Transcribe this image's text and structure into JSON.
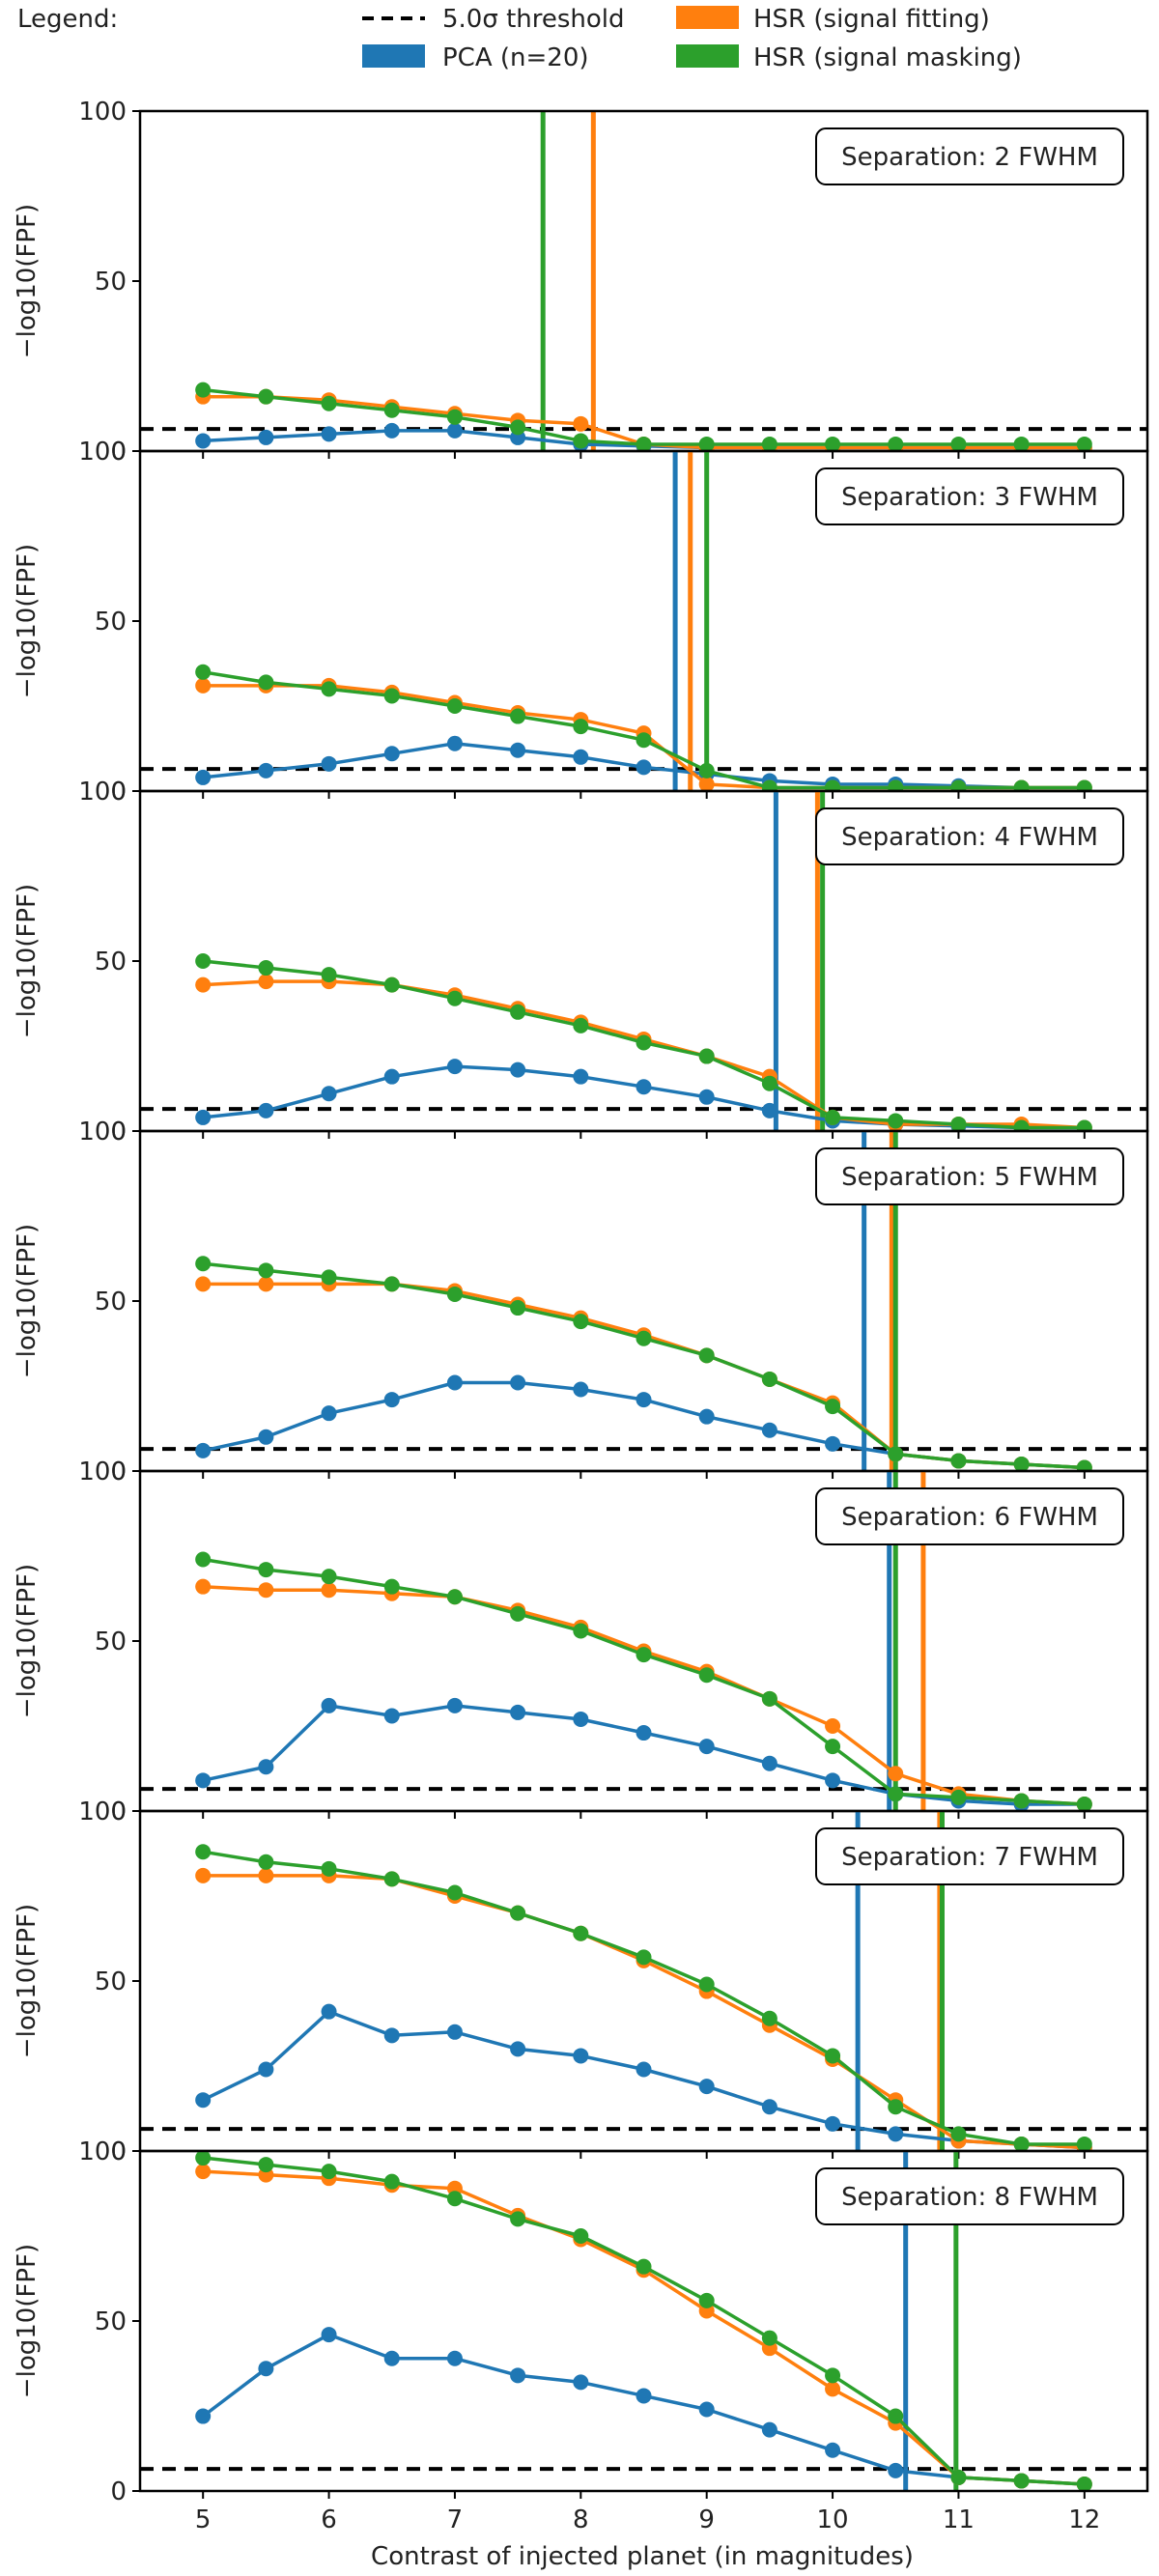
{
  "legend": {
    "title": "Legend:",
    "entries": [
      {
        "label": "5.0σ threshold",
        "style": "dashed",
        "color": "#000000"
      },
      {
        "label": "PCA (n=20)",
        "style": "solid",
        "color": "#1f77b4"
      },
      {
        "label": "HSR (signal fitting)",
        "style": "solid",
        "color": "#ff7f0e"
      },
      {
        "label": "HSR (signal masking)",
        "style": "solid",
        "color": "#2ca02c"
      }
    ]
  },
  "colors": {
    "pca": "#1f77b4",
    "fitting": "#ff7f0e",
    "masking": "#2ca02c",
    "threshold": "#000000"
  },
  "shared": {
    "xlabel": "Contrast of injected planet (in magnitudes)",
    "ylabel": "−log10(FPF)",
    "x_ticks": [
      5,
      6,
      7,
      8,
      9,
      10,
      11,
      12
    ],
    "xlim": [
      4.5,
      12.5
    ],
    "ylim": [
      0,
      100
    ],
    "y_ticks": [
      0,
      50,
      100
    ],
    "threshold": 6.5
  },
  "chart_data": [
    {
      "type": "line",
      "label": "Separation: 2 FWHM",
      "x": [
        5,
        5.5,
        6,
        6.5,
        7,
        7.5,
        8,
        8.5,
        9,
        9.5,
        10,
        10.5,
        11,
        11.5,
        12
      ],
      "series": [
        {
          "name": "PCA (n=20)",
          "values": [
            3,
            4,
            5,
            6,
            6,
            4,
            2,
            1.5,
            1,
            1,
            1,
            1,
            1,
            1,
            1
          ],
          "limit": null
        },
        {
          "name": "HSR (signal fitting)",
          "values": [
            16,
            16,
            15,
            13,
            11,
            9,
            8,
            2,
            1,
            1,
            1,
            1,
            1,
            1,
            1
          ],
          "limit": 8.1
        },
        {
          "name": "HSR (signal masking)",
          "values": [
            18,
            16,
            14,
            12,
            10,
            7,
            3,
            2,
            2,
            2,
            2,
            2,
            2,
            2,
            2
          ],
          "limit": 7.7
        }
      ]
    },
    {
      "type": "line",
      "label": "Separation: 3 FWHM",
      "x": [
        5,
        5.5,
        6,
        6.5,
        7,
        7.5,
        8,
        8.5,
        9,
        9.5,
        10,
        10.5,
        11,
        11.5,
        12
      ],
      "series": [
        {
          "name": "PCA (n=20)",
          "values": [
            4,
            6,
            8,
            11,
            14,
            12,
            10,
            7,
            5,
            3,
            2,
            2,
            1.5,
            1,
            1
          ],
          "limit": 8.75
        },
        {
          "name": "HSR (signal fitting)",
          "values": [
            31,
            31,
            31,
            29,
            26,
            23,
            21,
            17,
            2,
            1,
            1,
            1,
            1,
            1,
            1
          ],
          "limit": 8.87
        },
        {
          "name": "HSR (signal masking)",
          "values": [
            35,
            32,
            30,
            28,
            25,
            22,
            19,
            15,
            6,
            1,
            1,
            1,
            1,
            1,
            1
          ],
          "limit": 9.0
        }
      ]
    },
    {
      "type": "line",
      "label": "Separation: 4 FWHM",
      "x": [
        5,
        5.5,
        6,
        6.5,
        7,
        7.5,
        8,
        8.5,
        9,
        9.5,
        10,
        10.5,
        11,
        11.5,
        12
      ],
      "series": [
        {
          "name": "PCA (n=20)",
          "values": [
            4,
            6,
            11,
            16,
            19,
            18,
            16,
            13,
            10,
            6,
            3,
            2,
            1.5,
            1,
            1
          ],
          "limit": 9.55
        },
        {
          "name": "HSR (signal fitting)",
          "values": [
            43,
            44,
            44,
            43,
            40,
            36,
            32,
            27,
            22,
            16,
            4,
            2,
            2,
            2,
            1
          ],
          "limit": 9.88
        },
        {
          "name": "HSR (signal masking)",
          "values": [
            50,
            48,
            46,
            43,
            39,
            35,
            31,
            26,
            22,
            14,
            4,
            3,
            2,
            1,
            1
          ],
          "limit": 9.92
        }
      ]
    },
    {
      "type": "line",
      "label": "Separation: 5 FWHM",
      "x": [
        5,
        5.5,
        6,
        6.5,
        7,
        7.5,
        8,
        8.5,
        9,
        9.5,
        10,
        10.5,
        11,
        11.5,
        12
      ],
      "series": [
        {
          "name": "PCA (n=20)",
          "values": [
            6,
            10,
            17,
            21,
            26,
            26,
            24,
            21,
            16,
            12,
            8,
            5,
            3,
            2,
            1
          ],
          "limit": 10.25
        },
        {
          "name": "HSR (signal fitting)",
          "values": [
            55,
            55,
            55,
            55,
            53,
            49,
            45,
            40,
            34,
            27,
            20,
            5,
            3,
            2,
            1
          ],
          "limit": 10.47
        },
        {
          "name": "HSR (signal masking)",
          "values": [
            61,
            59,
            57,
            55,
            52,
            48,
            44,
            39,
            34,
            27,
            19,
            5,
            3,
            2,
            1
          ],
          "limit": 10.5
        }
      ]
    },
    {
      "type": "line",
      "label": "Separation: 6 FWHM",
      "x": [
        5,
        5.5,
        6,
        6.5,
        7,
        7.5,
        8,
        8.5,
        9,
        9.5,
        10,
        10.5,
        11,
        11.5,
        12
      ],
      "series": [
        {
          "name": "PCA (n=20)",
          "values": [
            9,
            13,
            31,
            28,
            31,
            29,
            27,
            23,
            19,
            14,
            9,
            5,
            3,
            2,
            2
          ],
          "limit": 10.45
        },
        {
          "name": "HSR (signal fitting)",
          "values": [
            66,
            65,
            65,
            64,
            63,
            59,
            54,
            47,
            41,
            33,
            25,
            11,
            5,
            3,
            2
          ],
          "limit": 10.72
        },
        {
          "name": "HSR (signal masking)",
          "values": [
            74,
            71,
            69,
            66,
            63,
            58,
            53,
            46,
            40,
            33,
            19,
            5,
            4,
            3,
            2
          ],
          "limit": 10.5
        }
      ]
    },
    {
      "type": "line",
      "label": "Separation: 7 FWHM",
      "x": [
        5,
        5.5,
        6,
        6.5,
        7,
        7.5,
        8,
        8.5,
        9,
        9.5,
        10,
        10.5,
        11,
        11.5,
        12
      ],
      "series": [
        {
          "name": "PCA (n=20)",
          "values": [
            15,
            24,
            41,
            34,
            35,
            30,
            28,
            24,
            19,
            13,
            8,
            5,
            3,
            2,
            1
          ],
          "limit": 10.2
        },
        {
          "name": "HSR (signal fitting)",
          "values": [
            81,
            81,
            81,
            80,
            75,
            70,
            64,
            56,
            47,
            37,
            27,
            15,
            3,
            2,
            1
          ],
          "limit": 10.85
        },
        {
          "name": "HSR (signal masking)",
          "values": [
            88,
            85,
            83,
            80,
            76,
            70,
            64,
            57,
            49,
            39,
            28,
            13,
            5,
            2,
            2
          ],
          "limit": 10.87
        }
      ]
    },
    {
      "type": "line",
      "label": "Separation: 8 FWHM",
      "x": [
        5,
        5.5,
        6,
        6.5,
        7,
        7.5,
        8,
        8.5,
        9,
        9.5,
        10,
        10.5,
        11,
        11.5,
        12
      ],
      "series": [
        {
          "name": "PCA (n=20)",
          "values": [
            22,
            36,
            46,
            39,
            39,
            34,
            32,
            28,
            24,
            18,
            12,
            6,
            4,
            3,
            2
          ],
          "limit": 10.58
        },
        {
          "name": "HSR (signal fitting)",
          "values": [
            94,
            93,
            92,
            90,
            89,
            81,
            74,
            65,
            53,
            42,
            30,
            20,
            4,
            3,
            2
          ],
          "limit": null
        },
        {
          "name": "HSR (signal masking)",
          "values": [
            98,
            96,
            94,
            91,
            86,
            80,
            75,
            66,
            56,
            45,
            34,
            22,
            4,
            3,
            2
          ],
          "limit": 10.98
        }
      ]
    }
  ]
}
